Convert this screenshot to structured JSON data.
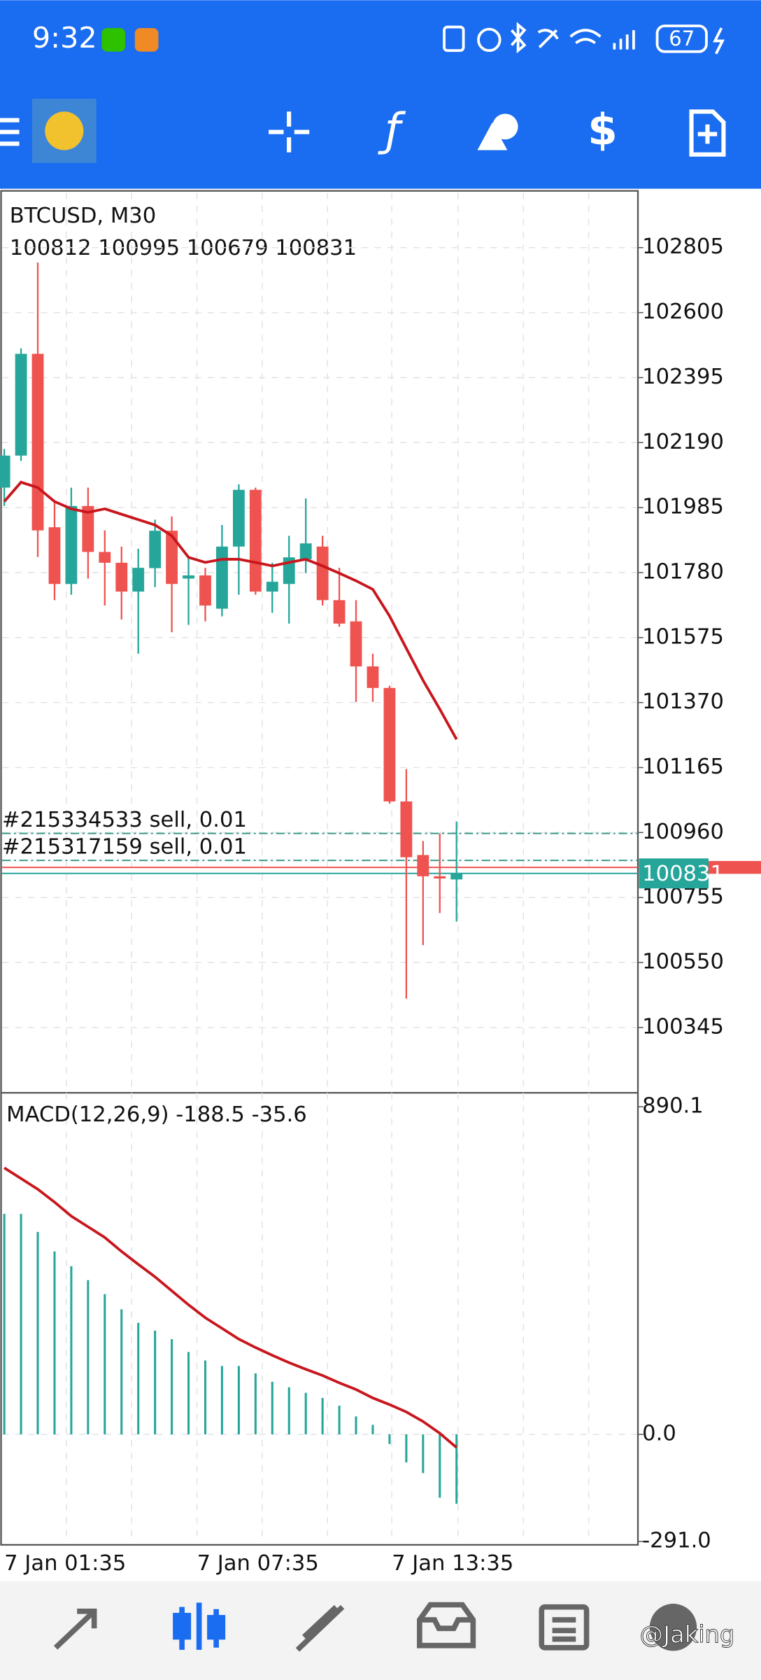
{
  "status_bar": {
    "time": "9:32",
    "battery": "67"
  },
  "chart_data": [
    {
      "type": "candlestick",
      "title": "BTCUSD, M30",
      "ohlc_label": "100812 100995 100679 100831",
      "open": [
        102048,
        102149,
        102470,
        101923,
        101744,
        101990,
        101845,
        101811,
        101720,
        101794,
        101912,
        101761,
        101771,
        101666,
        101862,
        102041,
        101720,
        101744,
        101822,
        101862,
        101693,
        101626,
        101484,
        101416,
        101058,
        100889,
        100822,
        100812
      ],
      "high": [
        102170,
        102487,
        102758,
        102000,
        102048,
        102048,
        101913,
        101862,
        101855,
        101947,
        101957,
        101828,
        101795,
        101930,
        102058,
        102048,
        101811,
        101896,
        102014,
        101896,
        101795,
        101693,
        101524,
        101423,
        101160,
        100933,
        100957,
        100995
      ],
      "low": [
        101990,
        102132,
        101829,
        101693,
        101710,
        101761,
        101676,
        101632,
        101524,
        101734,
        101592,
        101615,
        101626,
        101642,
        101710,
        101710,
        101653,
        101619,
        101778,
        101676,
        101609,
        101372,
        101372,
        101051,
        100436,
        100605,
        100706,
        100679
      ],
      "close": [
        102149,
        102470,
        101913,
        101744,
        101990,
        101845,
        101811,
        101720,
        101795,
        101912,
        101744,
        101771,
        101676,
        101862,
        102041,
        101720,
        101751,
        101828,
        101872,
        101693,
        101619,
        101484,
        101416,
        101058,
        100882,
        100822,
        100815,
        100831
      ],
      "ma": [
        102004,
        102065,
        102048,
        102004,
        101981,
        101970,
        101981,
        101964,
        101947,
        101930,
        101896,
        101828,
        101812,
        101822,
        101822,
        101812,
        101801,
        101812,
        101822,
        101801,
        101778,
        101754,
        101727,
        101643,
        101541,
        101440,
        101349,
        101254
      ],
      "colors": {
        "up": "#26a69a",
        "down": "#ef5350",
        "ma": "#c8161d"
      },
      "ylim": [
        100139,
        102984
      ],
      "yticks": [
        102805,
        102600,
        102395,
        102190,
        101985,
        101780,
        101575,
        101370,
        101165,
        100960,
        100755,
        100550,
        100345
      ],
      "grid": true,
      "bid": 100831,
      "ask": 100850,
      "orders": [
        {
          "label": "#215334533 sell, 0.01",
          "price": 100957
        },
        {
          "label": "#215317159 sell, 0.01",
          "price": 100872
        }
      ],
      "time_labels": [
        "7 Jan 01:35",
        "7 Jan 07:35",
        "7 Jan 13:35"
      ]
    },
    {
      "type": "macd",
      "label": "MACD(12,26,9) -188.5 -35.6",
      "histogram": [
        599,
        599,
        550,
        497,
        457,
        419,
        381,
        340,
        303,
        282,
        259,
        224,
        201,
        186,
        186,
        166,
        143,
        128,
        113,
        99,
        78,
        49,
        26,
        -26,
        -76,
        -105,
        -172,
        -188.5
      ],
      "signal": [
        724,
        695,
        666,
        631,
        593,
        564,
        535,
        497,
        462,
        428,
        390,
        352,
        317,
        288,
        259,
        236,
        215,
        195,
        177,
        160,
        140,
        122,
        99,
        81,
        61,
        35,
        3,
        -35.6
      ],
      "colors": {
        "histogram": "#26a69a",
        "signal": "#c8161d"
      },
      "ylim": [
        -300,
        928
      ],
      "yticks": [
        {
          "value": 890.1,
          "label": "890.1"
        },
        {
          "value": 0,
          "label": "0.0"
        },
        {
          "value": -291,
          "label": "-291.0"
        }
      ]
    }
  ],
  "watermark": "@Jaking"
}
